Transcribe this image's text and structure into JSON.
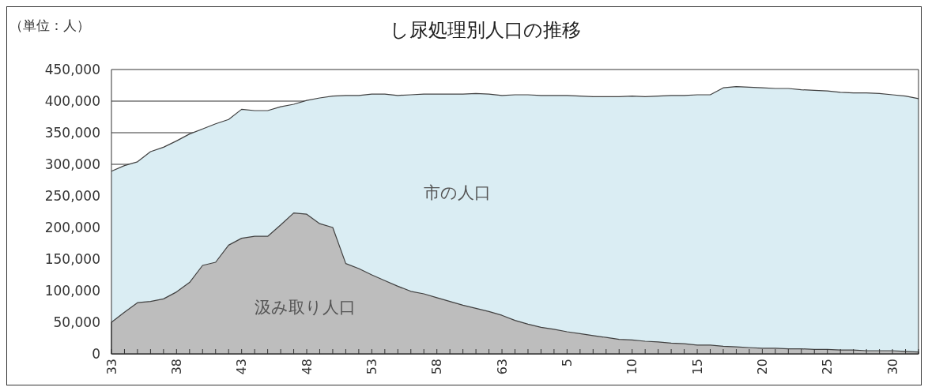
{
  "chart_data": {
    "type": "area",
    "title": "し尿処理別人口の推移",
    "ylabel": "（単位：人）",
    "categories": [
      "33",
      null,
      null,
      null,
      null,
      "38",
      null,
      null,
      null,
      null,
      "43",
      null,
      null,
      null,
      null,
      "48",
      null,
      null,
      null,
      null,
      "53",
      null,
      null,
      null,
      null,
      "58",
      null,
      null,
      null,
      null,
      "63",
      null,
      null,
      null,
      null,
      "5",
      null,
      null,
      null,
      null,
      "10",
      null,
      null,
      null,
      null,
      "15",
      null,
      null,
      null,
      null,
      "20",
      null,
      null,
      null,
      null,
      "25",
      null,
      null,
      null,
      null,
      "30",
      null,
      null
    ],
    "series": [
      {
        "name": "市の人口",
        "color": "#daedf3",
        "values": [
          289000,
          298000,
          304000,
          320000,
          327000,
          337000,
          348000,
          356000,
          364000,
          371000,
          387000,
          385000,
          385000,
          391000,
          395000,
          401000,
          405000,
          408000,
          409000,
          409000,
          411000,
          411000,
          409000,
          410000,
          411000,
          411000,
          411000,
          411000,
          412000,
          411000,
          409000,
          410000,
          410000,
          409000,
          409000,
          409000,
          408000,
          407000,
          407000,
          407000,
          408000,
          407000,
          408000,
          409000,
          409000,
          410000,
          410000,
          421000,
          423000,
          422000,
          421000,
          420000,
          420000,
          418000,
          417000,
          416000,
          414000,
          413000,
          413000,
          412000,
          410000,
          408000,
          404000
        ]
      },
      {
        "name": "汲み取り人口",
        "color": "#bdbdbd",
        "values": [
          50000,
          66000,
          81000,
          83000,
          87000,
          98000,
          113000,
          140000,
          145000,
          172000,
          183000,
          186000,
          186000,
          204000,
          223000,
          221000,
          206000,
          200000,
          143000,
          135000,
          125000,
          116000,
          107000,
          99000,
          95000,
          89000,
          83000,
          77000,
          72000,
          67000,
          61000,
          53000,
          47000,
          42000,
          39000,
          35000,
          32000,
          29000,
          26000,
          23000,
          22000,
          20000,
          19000,
          17000,
          16000,
          14000,
          14000,
          12000,
          11000,
          10000,
          9000,
          9000,
          8000,
          8000,
          7000,
          7000,
          6000,
          6000,
          5000,
          5000,
          5000,
          4000,
          3000
        ]
      }
    ],
    "ylim": [
      0,
      450000
    ],
    "yticks": [
      {
        "value": 0,
        "label": "0"
      },
      {
        "value": 50000,
        "label": "50,000"
      },
      {
        "value": 100000,
        "label": "100,000"
      },
      {
        "value": 150000,
        "label": "150,000"
      },
      {
        "value": 200000,
        "label": "200,000"
      },
      {
        "value": 250000,
        "label": "250,000"
      },
      {
        "value": 300000,
        "label": "300,000"
      },
      {
        "value": 350000,
        "label": "350,000"
      },
      {
        "value": 400000,
        "label": "400,000"
      },
      {
        "value": 450000,
        "label": "450,000"
      }
    ],
    "grid": "y"
  }
}
